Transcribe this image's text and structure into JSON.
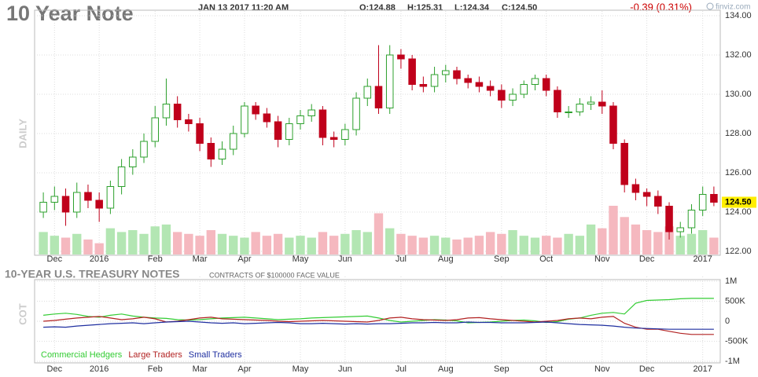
{
  "chart_data": [
    {
      "type": "candlestick",
      "title": "10 Year Note",
      "subtitle": "JAN 13 2017 11:20 AM",
      "quote": [
        "O:124.88",
        "H:125.31",
        "L:124.34",
        "C:124.50"
      ],
      "change": "-0.39 (0.31%)",
      "source": "finviz.com",
      "ylabel": "DAILY",
      "categories": [
        null,
        "Dec",
        null,
        null,
        null,
        "2016",
        null,
        null,
        null,
        null,
        "Feb",
        null,
        null,
        null,
        "Mar",
        null,
        null,
        null,
        "Apr",
        null,
        null,
        null,
        null,
        "May",
        null,
        null,
        null,
        "Jun",
        null,
        null,
        null,
        null,
        "Jul",
        null,
        null,
        null,
        "Aug",
        null,
        null,
        null,
        null,
        "Sep",
        null,
        null,
        null,
        "Oct",
        null,
        null,
        null,
        null,
        "Nov",
        null,
        null,
        null,
        "Dec",
        null,
        null,
        null,
        null,
        "2017",
        null
      ],
      "open": [
        124.0,
        124.5,
        124.8,
        124.0,
        125.0,
        124.6,
        124.2,
        125.3,
        126.3,
        126.8,
        127.6,
        128.8,
        129.5,
        128.7,
        128.5,
        127.5,
        126.7,
        127.2,
        128.0,
        129.4,
        129.0,
        128.6,
        127.7,
        128.5,
        128.9,
        129.2,
        127.8,
        127.7,
        128.2,
        129.8,
        130.4,
        129.3,
        132.0,
        131.8,
        130.5,
        130.4,
        131.0,
        131.2,
        130.8,
        130.6,
        130.4,
        130.2,
        129.7,
        130.0,
        130.5,
        130.8,
        130.2,
        129.1,
        129.1,
        129.5,
        129.6,
        129.4,
        127.5,
        125.4,
        125.0,
        124.8,
        124.3,
        123.0,
        123.2,
        124.1,
        124.9
      ],
      "high": [
        125.0,
        125.3,
        125.2,
        125.5,
        125.4,
        125.0,
        125.6,
        126.7,
        127.2,
        128.0,
        129.4,
        130.8,
        129.9,
        129.0,
        128.8,
        127.8,
        127.6,
        128.4,
        129.6,
        129.6,
        129.3,
        128.9,
        128.8,
        129.2,
        129.5,
        129.4,
        128.1,
        128.5,
        130.1,
        130.8,
        132.5,
        132.5,
        132.3,
        132.0,
        130.9,
        131.4,
        131.5,
        131.4,
        131.0,
        130.9,
        130.7,
        130.5,
        130.3,
        130.7,
        131.0,
        131.0,
        130.4,
        129.4,
        129.8,
        129.9,
        130.2,
        129.6,
        127.7,
        125.7,
        125.2,
        125.1,
        124.5,
        123.5,
        124.4,
        125.3,
        125.3
      ],
      "low": [
        123.7,
        124.1,
        123.3,
        123.7,
        124.2,
        123.5,
        123.9,
        124.9,
        125.9,
        126.5,
        127.3,
        128.4,
        128.3,
        128.1,
        127.1,
        126.3,
        126.4,
        126.9,
        127.8,
        128.7,
        128.3,
        127.3,
        127.4,
        128.2,
        128.6,
        127.4,
        127.3,
        127.4,
        127.9,
        129.4,
        129.0,
        129.0,
        131.3,
        130.2,
        130.1,
        130.1,
        130.6,
        130.5,
        130.3,
        130.1,
        129.9,
        129.3,
        129.4,
        129.8,
        130.2,
        129.9,
        128.8,
        128.8,
        128.9,
        129.2,
        129.0,
        127.2,
        125.0,
        124.6,
        124.3,
        123.9,
        122.6,
        122.7,
        122.9,
        123.8,
        124.3
      ],
      "close": [
        124.5,
        124.8,
        124.0,
        125.0,
        124.6,
        124.2,
        125.3,
        126.3,
        126.8,
        127.6,
        128.8,
        129.5,
        128.7,
        128.5,
        127.5,
        126.7,
        127.2,
        128.0,
        129.4,
        129.0,
        128.6,
        127.7,
        128.5,
        128.9,
        129.2,
        127.8,
        127.7,
        128.2,
        129.8,
        130.4,
        129.3,
        132.0,
        131.8,
        130.5,
        130.4,
        131.0,
        131.2,
        130.8,
        130.6,
        130.4,
        130.2,
        129.7,
        130.0,
        130.5,
        130.8,
        130.2,
        129.1,
        129.1,
        129.5,
        129.6,
        129.4,
        127.5,
        125.4,
        125.0,
        124.8,
        124.3,
        123.0,
        123.2,
        124.1,
        124.9,
        124.5
      ],
      "volume": [
        12,
        10,
        9,
        11,
        8,
        6,
        14,
        12,
        13,
        11,
        15,
        16,
        12,
        11,
        10,
        13,
        11,
        10,
        9,
        12,
        10,
        11,
        9,
        10,
        9,
        12,
        10,
        11,
        13,
        12,
        22,
        14,
        11,
        10,
        9,
        10,
        9,
        8,
        9,
        10,
        12,
        11,
        13,
        10,
        9,
        10,
        9,
        11,
        10,
        16,
        14,
        26,
        20,
        16,
        13,
        12,
        15,
        10,
        11,
        13,
        9
      ],
      "up_color": "#2ca02c",
      "down_color": "#c0001b",
      "volume_up_color": "#b3e6b3",
      "volume_down_color": "#f5b8bf",
      "ylim": [
        122,
        134
      ],
      "yticks": [
        {
          "value": 122,
          "label": "122.00"
        },
        {
          "value": 124,
          "label": "124.00"
        },
        {
          "value": 126,
          "label": "126.00"
        },
        {
          "value": 128,
          "label": "128.00"
        },
        {
          "value": 130,
          "label": "130.00"
        },
        {
          "value": 132,
          "label": "132.00"
        },
        {
          "value": 134,
          "label": "134.00"
        }
      ],
      "last_price": {
        "value": 124.5,
        "label": "124.50"
      },
      "grid": true
    },
    {
      "type": "line",
      "title": "10-YEAR U.S. TREASURY NOTES",
      "subtitle": "CONTRACTS OF $100000 FACE VALUE",
      "ylabel": "COT",
      "categories": [
        null,
        "Dec",
        null,
        null,
        null,
        "2016",
        null,
        null,
        null,
        null,
        "Feb",
        null,
        null,
        null,
        "Mar",
        null,
        null,
        null,
        "Apr",
        null,
        null,
        null,
        null,
        "May",
        null,
        null,
        null,
        "Jun",
        null,
        null,
        null,
        null,
        "Jul",
        null,
        null,
        null,
        "Aug",
        null,
        null,
        null,
        null,
        "Sep",
        null,
        null,
        null,
        "Oct",
        null,
        null,
        null,
        null,
        "Nov",
        null,
        null,
        null,
        "Dec",
        null,
        null,
        null,
        null,
        "2017",
        null
      ],
      "series": [
        {
          "name": "Commercial Hedgers",
          "color": "#33cc33",
          "values": [
            150000,
            180000,
            200000,
            170000,
            120000,
            100000,
            150000,
            180000,
            130000,
            100000,
            80000,
            70000,
            40000,
            30000,
            40000,
            60000,
            80000,
            90000,
            100000,
            80000,
            60000,
            40000,
            50000,
            60000,
            80000,
            90000,
            100000,
            110000,
            120000,
            130000,
            80000,
            20000,
            -20000,
            0,
            20000,
            40000,
            30000,
            10000,
            -40000,
            -30000,
            -20000,
            0,
            20000,
            30000,
            10000,
            -30000,
            -10000,
            50000,
            80000,
            150000,
            200000,
            220000,
            180000,
            450000,
            520000,
            530000,
            540000,
            560000,
            570000,
            570000,
            570000
          ]
        },
        {
          "name": "Large Traders",
          "color": "#b22222",
          "values": [
            0,
            20000,
            50000,
            80000,
            100000,
            120000,
            80000,
            40000,
            60000,
            100000,
            60000,
            -20000,
            0,
            40000,
            80000,
            100000,
            60000,
            50000,
            40000,
            30000,
            20000,
            0,
            -10000,
            0,
            10000,
            20000,
            10000,
            0,
            -10000,
            -20000,
            20000,
            80000,
            100000,
            60000,
            40000,
            30000,
            20000,
            40000,
            80000,
            90000,
            60000,
            40000,
            20000,
            0,
            -20000,
            0,
            20000,
            60000,
            80000,
            60000,
            100000,
            120000,
            -50000,
            -150000,
            -200000,
            -200000,
            -250000,
            -300000,
            -330000,
            -330000,
            -330000
          ]
        },
        {
          "name": "Small Traders",
          "color": "#1f2fa0",
          "values": [
            -150000,
            -140000,
            -150000,
            -120000,
            -100000,
            -80000,
            -60000,
            -50000,
            -40000,
            -60000,
            -40000,
            -20000,
            -10000,
            0,
            -20000,
            -40000,
            -50000,
            -40000,
            -60000,
            -50000,
            -40000,
            -30000,
            -40000,
            -60000,
            -60000,
            -50000,
            -60000,
            -70000,
            -60000,
            -70000,
            -60000,
            -60000,
            -50000,
            -40000,
            -40000,
            -30000,
            -40000,
            -40000,
            -20000,
            -30000,
            -30000,
            -40000,
            -40000,
            -40000,
            -30000,
            -20000,
            -40000,
            -60000,
            -80000,
            -90000,
            -100000,
            -120000,
            -150000,
            -170000,
            -180000,
            -190000,
            -200000,
            -200000,
            -200000,
            -200000,
            -200000
          ]
        }
      ],
      "ylim": [
        -1000000,
        1000000
      ],
      "yticks": [
        {
          "value": 1000000,
          "label": "1M"
        },
        {
          "value": 500000,
          "label": "500K"
        },
        0,
        {
          "value": -500000,
          "label": "-500K"
        },
        {
          "value": -1000000,
          "label": "-1M"
        }
      ],
      "grid": true
    }
  ]
}
